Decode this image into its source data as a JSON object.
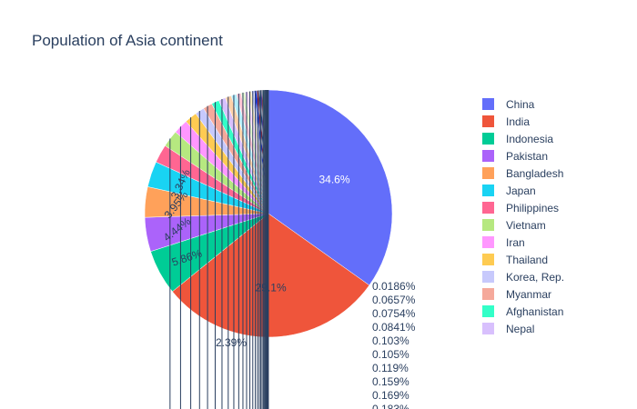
{
  "chart_data": {
    "type": "pie",
    "title": "Population of Asia continent",
    "legend_position": "right",
    "slices": [
      {
        "name": "China",
        "percent": 34.6,
        "label": "34.6%",
        "color": "#636efa"
      },
      {
        "name": "India",
        "percent": 29.1,
        "label": "29.1%",
        "color": "#EF553B"
      },
      {
        "name": "Indonesia",
        "percent": 5.86,
        "label": "5.86%",
        "color": "#00cc96"
      },
      {
        "name": "Pakistan",
        "percent": 4.44,
        "label": "4.44%",
        "color": "#ab63fa"
      },
      {
        "name": "Bangladesh",
        "percent": 3.95,
        "label": "3.95%",
        "color": "#FFA15A"
      },
      {
        "name": "Japan",
        "percent": 3.34,
        "label": "3.34%",
        "color": "#19d3f3"
      },
      {
        "name": "Philippines",
        "percent": 2.39,
        "label": "2.39%",
        "color": "#FF6692"
      },
      {
        "name": "Vietnam",
        "percent": 2.2,
        "label": "",
        "color": "#B6E880"
      },
      {
        "name": "Iran",
        "percent": 1.9,
        "label": "",
        "color": "#FF97FF"
      },
      {
        "name": "Thailand",
        "percent": 1.6,
        "label": "",
        "color": "#FECB52"
      },
      {
        "name": "Korea, Rep.",
        "percent": 1.2,
        "label": "",
        "color": "#c7c9fc"
      },
      {
        "name": "Myanmar",
        "percent": 1.2,
        "label": "",
        "color": "#f5a99b"
      },
      {
        "name": "Afghanistan",
        "percent": 1.0,
        "label": "",
        "color": "#33ffc8"
      },
      {
        "name": "Nepal",
        "percent": 0.9,
        "label": "",
        "color": "#d8c0fd"
      },
      {
        "percent": 0.8,
        "label": "",
        "color": "#ffd1a8"
      },
      {
        "percent": 0.7,
        "label": "",
        "color": "#b5eefa"
      },
      {
        "percent": 0.6,
        "label": "",
        "color": "#ffc3d3"
      },
      {
        "percent": 0.5,
        "label": "",
        "color": "#e2f5cc"
      },
      {
        "percent": 0.45,
        "label": "",
        "color": "#ffd9ff"
      },
      {
        "percent": 0.4,
        "label": "",
        "color": "#ffebbd"
      },
      {
        "percent": 0.35,
        "label": "",
        "color": "#c2c7ff"
      },
      {
        "percent": 0.3,
        "label": "",
        "color": "#1c2dfb"
      },
      {
        "percent": 0.25,
        "label": "",
        "color": "#c4122e"
      },
      {
        "percent": 0.2,
        "label": "",
        "color": "#0d4a8c"
      },
      {
        "percent": 0.183,
        "label": "0.183%",
        "color": "#6e3bd6"
      },
      {
        "percent": 0.169,
        "label": "0.169%",
        "color": "#d64b37"
      },
      {
        "percent": 0.159,
        "label": "0.159%",
        "color": "#1aa37a"
      },
      {
        "percent": 0.119,
        "label": "0.119%",
        "color": "#8b4fd0"
      },
      {
        "percent": 0.105,
        "label": "0.105%",
        "color": "#e08a3c"
      },
      {
        "percent": 0.103,
        "label": "0.103%",
        "color": "#13a8c4"
      },
      {
        "percent": 0.0841,
        "label": "0.0841%",
        "color": "#dd5478"
      },
      {
        "percent": 0.0754,
        "label": "0.0754%",
        "color": "#93c066"
      },
      {
        "percent": 0.0657,
        "label": "0.0657%",
        "color": "#d97ad9"
      },
      {
        "percent": 0.0186,
        "label": "0.0186%",
        "color": "#d4a842"
      }
    ]
  }
}
